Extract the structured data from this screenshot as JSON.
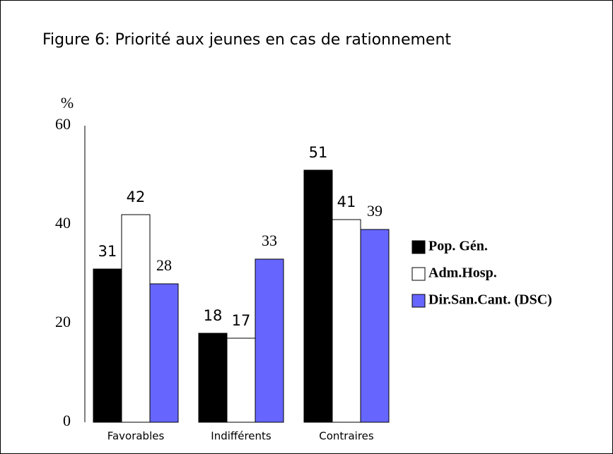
{
  "chart_data": {
    "type": "bar",
    "title": "Figure 6: Priorité aux jeunes en cas de rationnement",
    "y_label": "%",
    "categories": [
      "Favorables",
      "Indifférents",
      "Contraires"
    ],
    "series": [
      {
        "name": "Pop. Gén.",
        "color": "#000000",
        "values": [
          31,
          18,
          51
        ]
      },
      {
        "name": "Adm.Hosp.",
        "color": "#ffffff",
        "values": [
          42,
          17,
          41
        ]
      },
      {
        "name": "Dir.San.Cant. (DSC)",
        "color": "#6666ff",
        "values": [
          28,
          33,
          39
        ]
      }
    ],
    "ylim": [
      0,
      60
    ],
    "yticks": [
      0,
      20,
      40,
      60
    ],
    "grid": false,
    "legend": "right"
  }
}
